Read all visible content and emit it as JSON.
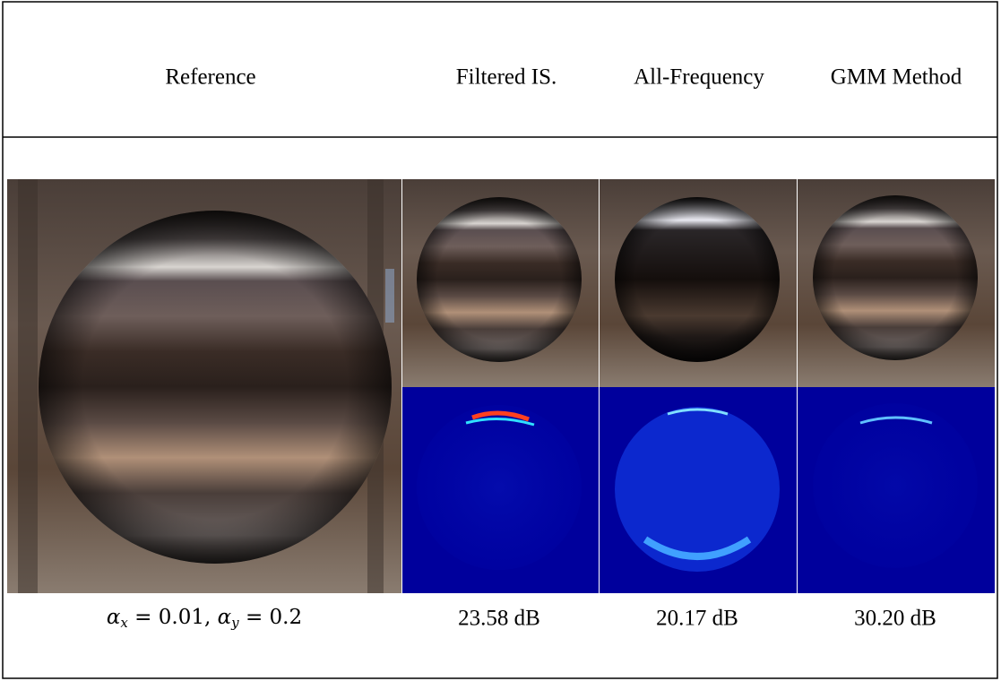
{
  "header": {
    "columns": [
      "Reference",
      "Filtered IS.",
      "All-Frequency",
      "GMM Method"
    ]
  },
  "footer": {
    "parameter_label": [
      "α",
      "x",
      " = 0.01, ",
      "α",
      "y",
      " = 0.2"
    ],
    "psnr": [
      "23.58 dB",
      "20.17 dB",
      "30.20 dB"
    ]
  }
}
